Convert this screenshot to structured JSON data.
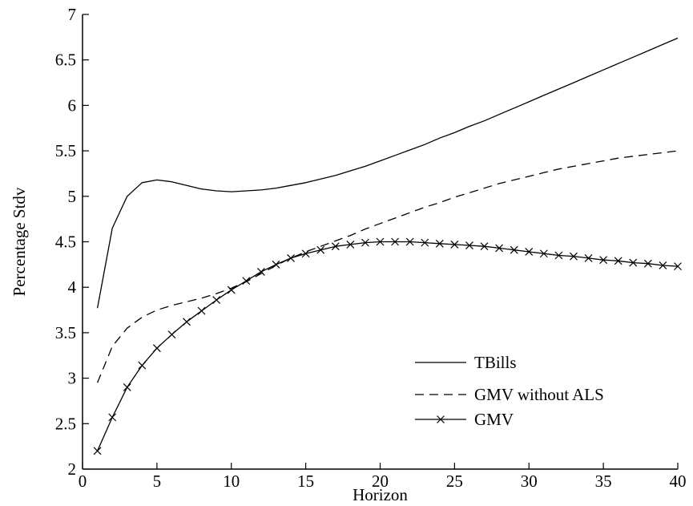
{
  "chart_data": {
    "type": "line",
    "title": "",
    "xlabel": "Horizon",
    "ylabel": "Percentage Stdv",
    "xlim": [
      0,
      40
    ],
    "ylim": [
      2,
      7
    ],
    "xticks": [
      0,
      5,
      10,
      15,
      20,
      25,
      30,
      35,
      40
    ],
    "xtick_labels": [
      "0",
      "5",
      "10",
      "15",
      "20",
      "25",
      "30",
      "35",
      "40"
    ],
    "yticks": [
      2,
      2.5,
      3,
      3.5,
      4,
      4.5,
      5,
      5.5,
      6,
      6.5,
      7
    ],
    "ytick_labels": [
      "2",
      "2.5",
      "3",
      "3.5",
      "4",
      "4.5",
      "5",
      "5.5",
      "6",
      "6.5",
      "7"
    ],
    "grid": false,
    "legend_position": "bottom-right",
    "x": [
      1,
      2,
      3,
      4,
      5,
      6,
      7,
      8,
      9,
      10,
      11,
      12,
      13,
      14,
      15,
      16,
      17,
      18,
      19,
      20,
      21,
      22,
      23,
      24,
      25,
      26,
      27,
      28,
      29,
      30,
      31,
      32,
      33,
      34,
      35,
      36,
      37,
      38,
      39,
      40
    ],
    "series": [
      {
        "name": "TBills",
        "style": "solid",
        "marker": "none",
        "values": [
          3.77,
          4.65,
          5.0,
          5.15,
          5.18,
          5.16,
          5.12,
          5.08,
          5.06,
          5.05,
          5.06,
          5.07,
          5.09,
          5.12,
          5.15,
          5.19,
          5.23,
          5.28,
          5.33,
          5.39,
          5.45,
          5.51,
          5.57,
          5.64,
          5.7,
          5.77,
          5.83,
          5.9,
          5.97,
          6.04,
          6.11,
          6.18,
          6.25,
          6.32,
          6.39,
          6.46,
          6.53,
          6.6,
          6.67,
          6.74
        ]
      },
      {
        "name": "GMV without ALS",
        "style": "dashed",
        "marker": "none",
        "values": [
          2.95,
          3.35,
          3.55,
          3.67,
          3.75,
          3.8,
          3.84,
          3.88,
          3.93,
          3.99,
          4.06,
          4.15,
          4.24,
          4.32,
          4.39,
          4.45,
          4.51,
          4.57,
          4.64,
          4.7,
          4.76,
          4.82,
          4.88,
          4.93,
          4.99,
          5.04,
          5.09,
          5.14,
          5.18,
          5.22,
          5.26,
          5.3,
          5.33,
          5.36,
          5.39,
          5.42,
          5.44,
          5.46,
          5.48,
          5.5
        ]
      },
      {
        "name": "GMV",
        "style": "solid",
        "marker": "x",
        "values": [
          2.2,
          2.57,
          2.9,
          3.14,
          3.33,
          3.48,
          3.62,
          3.74,
          3.86,
          3.97,
          4.07,
          4.17,
          4.25,
          4.32,
          4.37,
          4.41,
          4.45,
          4.47,
          4.49,
          4.5,
          4.5,
          4.5,
          4.49,
          4.48,
          4.47,
          4.46,
          4.45,
          4.43,
          4.41,
          4.39,
          4.37,
          4.35,
          4.34,
          4.32,
          4.3,
          4.29,
          4.27,
          4.26,
          4.24,
          4.23
        ]
      }
    ]
  }
}
